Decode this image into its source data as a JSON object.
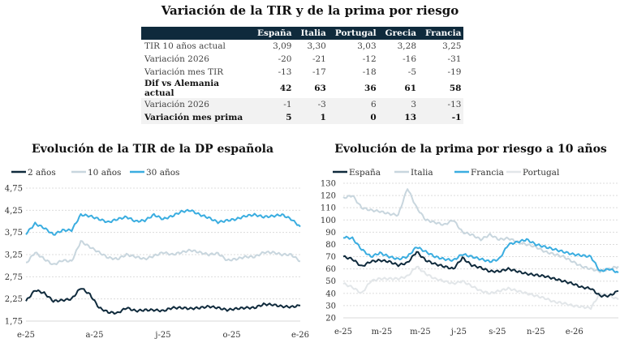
{
  "main_title": "Variación de la TIR y de la prima por riesgo",
  "table": {
    "headers": [
      "",
      "España",
      "Italia",
      "Portugal",
      "Grecia",
      "Francia"
    ],
    "rows": [
      {
        "label": "TIR 10 años actual",
        "values": [
          "3,09",
          "3,30",
          "3,03",
          "3,28",
          "3,25"
        ],
        "bold": false,
        "shade": false
      },
      {
        "label": "Variación 2026",
        "values": [
          "-20",
          "-21",
          "-12",
          "-16",
          "-31"
        ],
        "bold": false,
        "shade": false
      },
      {
        "label": "Variación mes TIR",
        "values": [
          "-13",
          "-17",
          "-18",
          "-5",
          "-19"
        ],
        "bold": false,
        "shade": false
      },
      {
        "label": "Dif vs Alemania actual",
        "values": [
          "42",
          "63",
          "36",
          "61",
          "58"
        ],
        "bold": true,
        "shade": false
      },
      {
        "label": "Variación 2026",
        "values": [
          "-1",
          "-3",
          "6",
          "3",
          "-13"
        ],
        "bold": false,
        "shade": true
      },
      {
        "label": "Variación mes prima",
        "values": [
          "5",
          "1",
          "0",
          "13",
          "-1"
        ],
        "bold": true,
        "shade": true
      }
    ]
  },
  "chart_data": [
    {
      "type": "line",
      "title": "Evolución de la TIR de la DP española",
      "xlabel": "",
      "ylabel": "",
      "x_ticks": [
        "e-25",
        "a-25",
        "j-25",
        "o-25",
        "e-26"
      ],
      "y_ticks": [
        "1,75",
        "2,25",
        "2,75",
        "3,25",
        "3,75",
        "4,25",
        "4,75"
      ],
      "ylim": [
        1.75,
        4.75
      ],
      "grid": true,
      "legend_position": "top-left",
      "x": [
        0,
        0.5,
        1,
        1.5,
        2,
        2.5,
        3,
        3.5,
        4,
        4.5,
        5,
        5.5,
        6,
        6.5,
        7,
        7.5,
        8,
        8.5,
        9,
        9.5,
        10,
        10.5,
        11,
        11.5,
        12,
        12.5,
        13,
        13.5,
        14,
        14.5,
        15
      ],
      "series": [
        {
          "name": "2 años",
          "color": "#0f2a3c",
          "values": [
            2.2,
            2.45,
            2.38,
            2.2,
            2.22,
            2.25,
            2.5,
            2.35,
            2.05,
            1.95,
            1.93,
            2.05,
            1.98,
            2.0,
            2.0,
            1.98,
            2.05,
            2.05,
            2.03,
            2.05,
            2.08,
            2.05,
            2.0,
            2.03,
            2.05,
            2.05,
            2.13,
            2.12,
            2.08,
            2.07,
            2.1
          ]
        },
        {
          "name": "10 años",
          "color": "#c8d6de",
          "values": [
            3.05,
            3.3,
            3.15,
            3.02,
            3.12,
            3.1,
            3.55,
            3.42,
            3.3,
            3.18,
            3.15,
            3.25,
            3.2,
            3.15,
            3.22,
            3.3,
            3.25,
            3.3,
            3.35,
            3.3,
            3.25,
            3.28,
            3.12,
            3.15,
            3.2,
            3.2,
            3.3,
            3.3,
            3.25,
            3.25,
            3.1
          ]
        },
        {
          "name": "30 años",
          "color": "#3aade0",
          "values": [
            3.72,
            3.95,
            3.85,
            3.7,
            3.8,
            3.8,
            4.15,
            4.12,
            4.05,
            3.98,
            4.05,
            4.1,
            4.0,
            4.02,
            4.15,
            4.05,
            4.12,
            4.22,
            4.25,
            4.15,
            4.08,
            3.98,
            4.02,
            4.05,
            4.12,
            4.15,
            4.1,
            4.12,
            4.15,
            4.05,
            3.88
          ]
        }
      ]
    },
    {
      "type": "line",
      "title": "Evolución de la prima por riesgo a 10 años",
      "xlabel": "",
      "ylabel": "",
      "x_ticks": [
        "e-25",
        "m-25",
        "m-25",
        "j-25",
        "s-25",
        "n-25",
        "e-26"
      ],
      "y_ticks": [
        "20",
        "30",
        "40",
        "50",
        "60",
        "70",
        "80",
        "90",
        "100",
        "110",
        "120",
        "130"
      ],
      "ylim": [
        20,
        130
      ],
      "grid": true,
      "legend_position": "top-left",
      "x": [
        0,
        0.5,
        1,
        1.5,
        2,
        2.5,
        3,
        3.5,
        4,
        4.5,
        5,
        5.5,
        6,
        6.5,
        7,
        7.5,
        8,
        8.5,
        9,
        9.5,
        10,
        10.5,
        11,
        11.5,
        12,
        12.5,
        13,
        13.5,
        14,
        14.5,
        15
      ],
      "series": [
        {
          "name": "España",
          "color": "#0f2a3c",
          "values": [
            70,
            68,
            62,
            66,
            67,
            66,
            63,
            65,
            74,
            67,
            64,
            62,
            60,
            69,
            63,
            61,
            58,
            58,
            60,
            58,
            56,
            55,
            54,
            52,
            50,
            48,
            45,
            44,
            38,
            38,
            42
          ]
        },
        {
          "name": "Italia",
          "color": "#c8d6de",
          "values": [
            118,
            120,
            110,
            108,
            107,
            105,
            104,
            126,
            110,
            100,
            98,
            96,
            100,
            90,
            88,
            84,
            88,
            84,
            85,
            82,
            80,
            78,
            74,
            72,
            70,
            66,
            62,
            60,
            58,
            60,
            62
          ]
        },
        {
          "name": "Francia",
          "color": "#3aade0",
          "values": [
            86,
            85,
            76,
            70,
            73,
            70,
            68,
            70,
            78,
            74,
            70,
            68,
            67,
            72,
            70,
            68,
            66,
            68,
            80,
            82,
            84,
            80,
            78,
            76,
            74,
            72,
            71,
            70,
            58,
            60,
            57
          ]
        },
        {
          "name": "Portugal",
          "color": "#e2e6e9",
          "values": [
            48,
            45,
            40,
            50,
            52,
            52,
            52,
            54,
            62,
            56,
            52,
            50,
            48,
            50,
            46,
            42,
            40,
            42,
            44,
            42,
            40,
            38,
            36,
            33,
            32,
            30,
            29,
            28,
            40,
            38,
            35
          ]
        }
      ]
    }
  ]
}
